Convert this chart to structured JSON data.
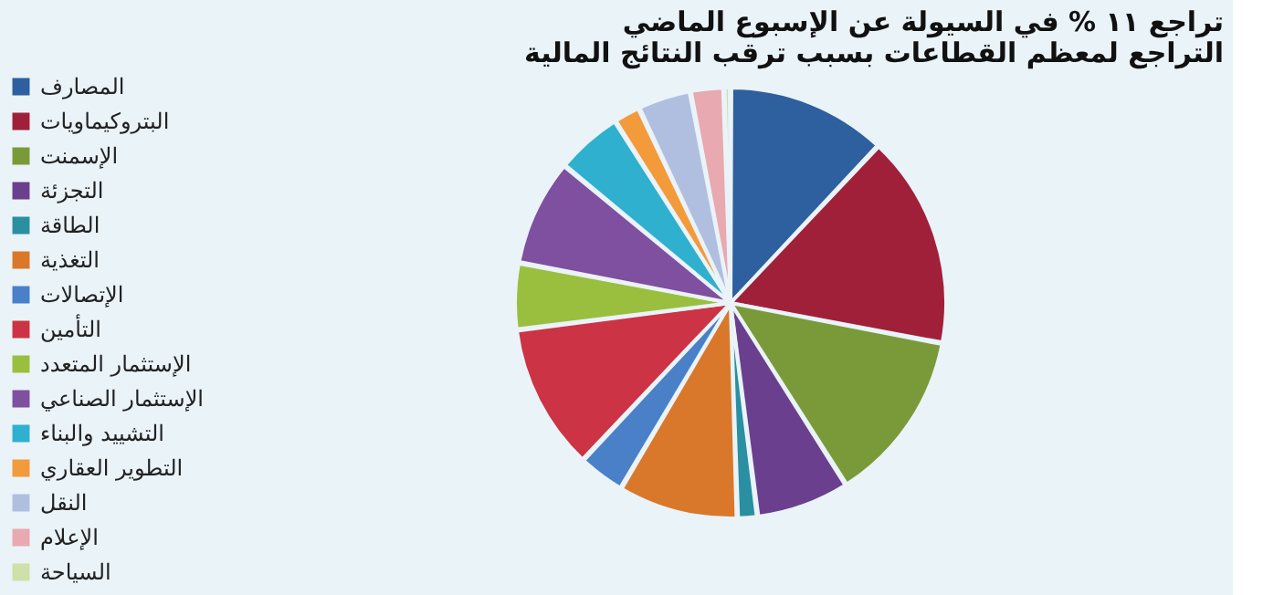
{
  "chart_data": {
    "type": "pie",
    "title": [
      "تراجع ١١ % في السيولة عن الإسبوع الماضي",
      "التراجع لمعظم القطاعات بسبب ترقب النتائج المالية"
    ],
    "categories": [
      "المصارف",
      "البتروكيماويات",
      "الإسمنت",
      "التجزئة",
      "الطاقة",
      "التغذية",
      "الإتصالات",
      "التأمين",
      "الإستثمار المتعدد",
      "الإستثمار الصناعي",
      "التشييد والبناء",
      "التطوير العقاري",
      "النقل",
      "الإعلام",
      "السياحة"
    ],
    "values": [
      12,
      16,
      13,
      7,
      1.5,
      9,
      3.5,
      11,
      5,
      8,
      5,
      2,
      4,
      2.5,
      0.5
    ],
    "colors": [
      "#2e5f9e",
      "#a0203a",
      "#7a9a3a",
      "#6a3f8e",
      "#2a8fa0",
      "#d9782a",
      "#4a80c8",
      "#cc3344",
      "#9abf3f",
      "#7f4fa0",
      "#2fb0cf",
      "#f39a3a",
      "#b0bfe0",
      "#e8a9b0",
      "#cfe0a8"
    ],
    "legend": "left"
  }
}
